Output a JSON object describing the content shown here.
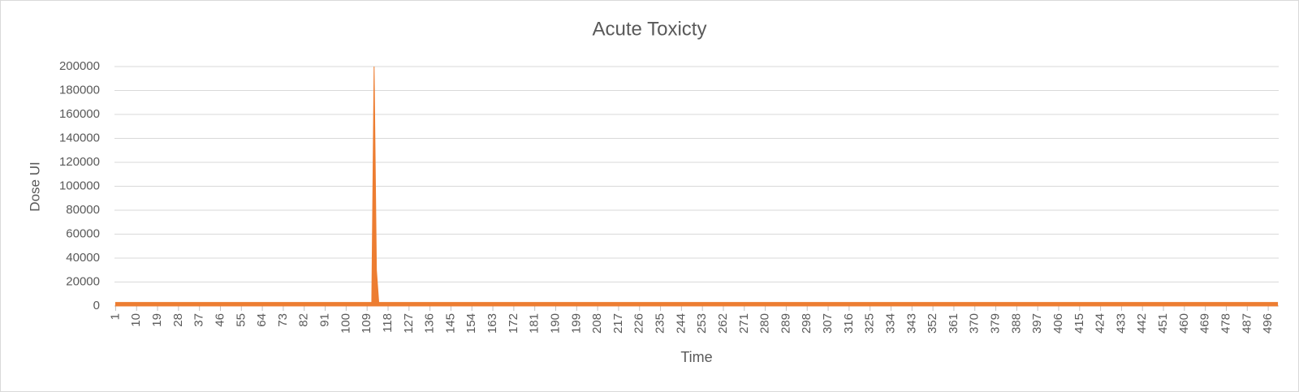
{
  "chart_data": {
    "type": "area",
    "title": "Acute Toxicty",
    "x_label": "Time",
    "y_label": "Dose UI",
    "x": [
      1,
      111,
      112,
      113,
      114,
      500
    ],
    "series": [
      {
        "name": "Dose UI",
        "color": "#ED7D31",
        "values": [
          3000,
          3000,
          200000,
          30000,
          3000,
          3000
        ]
      }
    ],
    "xlim": [
      0.5,
      500.5
    ],
    "xticks": [
      1,
      10,
      19,
      28,
      37,
      46,
      55,
      64,
      73,
      82,
      91,
      100,
      109,
      118,
      127,
      136,
      145,
      154,
      163,
      172,
      181,
      190,
      199,
      208,
      217,
      226,
      235,
      244,
      253,
      262,
      271,
      280,
      289,
      298,
      307,
      316,
      325,
      334,
      343,
      352,
      361,
      370,
      379,
      388,
      397,
      406,
      415,
      424,
      433,
      442,
      451,
      460,
      469,
      478,
      487,
      496
    ],
    "ylim": [
      0,
      200000
    ],
    "yticks": [
      0,
      20000,
      40000,
      60000,
      80000,
      100000,
      120000,
      140000,
      160000,
      180000,
      200000
    ],
    "grid": true
  }
}
